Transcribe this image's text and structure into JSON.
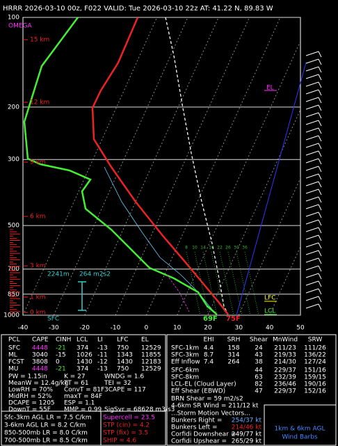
{
  "header": "HRRR 2026-03-10 00z, F022  VALID: Tue 2026-03-10 22z  AT: 41.22 N, 89.83 W",
  "chart_data": {
    "type": "skewt",
    "log_scale": true,
    "ylim": [
      100,
      1000
    ],
    "yticks": [
      100,
      200,
      300,
      500,
      700,
      850,
      1000
    ],
    "xlim": [
      -40,
      50
    ],
    "xticks": [
      -40,
      -30,
      -20,
      -10,
      0,
      10,
      20,
      30,
      40,
      50
    ],
    "height_labels": [
      "15 km",
      "12 km",
      "9 km",
      "6 km",
      "3 km",
      "1 km",
      "0 km"
    ],
    "omega_label": "OMEGA",
    "sfc_label": "SFC",
    "eff_inflow_depth": "2241m",
    "eff_inflow_srh": "264 m2s2",
    "el_label": "EL",
    "lfc_label": "LFC",
    "lcl_label": "LCL",
    "sfc_dewpoint": "69F",
    "sfc_temp": "75F",
    "mixing_ratios": [
      8,
      10,
      14,
      16,
      22,
      26,
      30,
      36
    ]
  },
  "thermo_table": {
    "columns": [
      "PCL",
      "CAPE",
      "CINH",
      "LCL",
      "LI",
      "LFC",
      "EL"
    ],
    "rows": [
      [
        "SFC",
        4448,
        -21,
        374,
        -13,
        750,
        12529
      ],
      [
        "ML",
        3040,
        -15,
        1026,
        -11,
        1343,
        11855
      ],
      [
        "FCST",
        3808,
        0,
        1430,
        -12,
        1430,
        12183
      ],
      [
        "MU",
        4448,
        -21,
        374,
        -13,
        750,
        12529
      ]
    ]
  },
  "indices": [
    [
      "PW = 1.15in",
      "K = 27",
      "WNDG = 1.6"
    ],
    [
      "MeanW = 12.4g/kg",
      "TT = 61",
      "TEI = 32"
    ],
    [
      "LowRH = 70%",
      "ConvT = 81F",
      "3CAPE = 117"
    ],
    [
      "MidRH = 52%",
      "maxT = 84F"
    ],
    [
      "DCAPE = 1205",
      "ESP = 1.1"
    ],
    [
      "DownT = 55F",
      "MMP = 0.99",
      "SigSvr = 68628 m3/s3"
    ]
  ],
  "lapse_rates": [
    "Sfc-3km AGL LR = 7.5 C/km",
    "3-6km AGL LR = 8.2 C/km",
    "850-500mb LR = 8.0 C/km",
    "700-500mb LR = 8.5 C/km"
  ],
  "composites": [
    "Supercell = 23.5",
    "STP (cin) = 4.2",
    "STP (fix) = 3.5",
    "SHIP = 4.6"
  ],
  "kinematics": {
    "columns": [
      "EHI",
      "SRH",
      "Shear",
      "MnWind",
      "SRW"
    ],
    "rows": [
      [
        "SFC-1km",
        4.4,
        158,
        24,
        "211/23",
        "111/26"
      ],
      [
        "SFC-3km",
        8.7,
        314,
        43,
        "219/33",
        "136/22"
      ],
      [
        "Eff Inflow",
        7.4,
        264,
        38,
        "214/30",
        "127/24"
      ]
    ],
    "layers": [
      [
        "SFC-6km",
        44,
        "229/37",
        "151/16"
      ],
      [
        "SFC-8km",
        63,
        "232/39",
        "159/15"
      ],
      [
        "LCL-EL (Cloud Layer)",
        82,
        "236/46",
        "190/16"
      ],
      [
        "Eff Shear (EBWD)",
        47,
        "229/37",
        "152/16"
      ]
    ],
    "brn_shear": "BRN Shear = 59 m2/s2",
    "sr_wind": "4-6km SR Wind = 211/12 kt"
  },
  "storm_motion": {
    "title": "...Storm Motion Vectors...",
    "rows": [
      [
        "Bunkers Right =",
        "254/37 kt"
      ],
      [
        "Bunkers Left =",
        "214/46 kt"
      ],
      [
        "Corfidi Downshear =",
        "249/77 kt"
      ],
      [
        "Corfidi Upshear =",
        "265/29 kt"
      ]
    ]
  },
  "barb_legend": [
    "1km & 6km AGL",
    "Wind Barbs"
  ]
}
